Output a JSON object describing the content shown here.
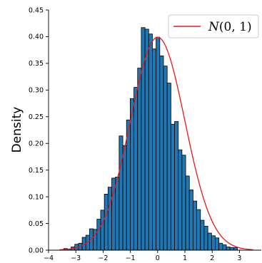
{
  "chart_data": {
    "type": "bar",
    "title": "",
    "xlabel": "",
    "ylabel": "Density",
    "xlim": [
      -4,
      3.8
    ],
    "ylim": [
      0,
      0.45
    ],
    "grid": false,
    "legend_position": "top-right",
    "x_ticks": [
      "−4",
      "−3",
      "−2",
      "−1",
      "0",
      "1",
      "2",
      "3"
    ],
    "y_ticks": [
      "0.00",
      "0.05",
      "0.10",
      "0.15",
      "0.20",
      "0.25",
      "0.30",
      "0.35",
      "0.40",
      "0.45"
    ],
    "bar_color": "#1f77b4",
    "curve_color": "#e8191b",
    "bins": {
      "edges_start": -3.58,
      "width": 0.1355,
      "values": [
        0.001,
        0.003,
        0.002,
        0.006,
        0.011,
        0.013,
        0.024,
        0.028,
        0.04,
        0.039,
        0.058,
        0.075,
        0.105,
        0.118,
        0.135,
        0.137,
        0.214,
        0.196,
        0.244,
        0.284,
        0.305,
        0.341,
        0.417,
        0.414,
        0.405,
        0.377,
        0.399,
        0.364,
        0.345,
        0.313,
        0.236,
        0.241,
        0.188,
        0.178,
        0.139,
        0.113,
        0.092,
        0.076,
        0.056,
        0.045,
        0.032,
        0.027,
        0.023,
        0.013,
        0.01,
        0.006,
        0.005,
        0.005
      ]
    },
    "series": [
      {
        "name": "N(0,1)",
        "label_base": "N",
        "label_args": "(0, 1)",
        "type": "line",
        "mean": 0,
        "std": 1
      }
    ]
  }
}
